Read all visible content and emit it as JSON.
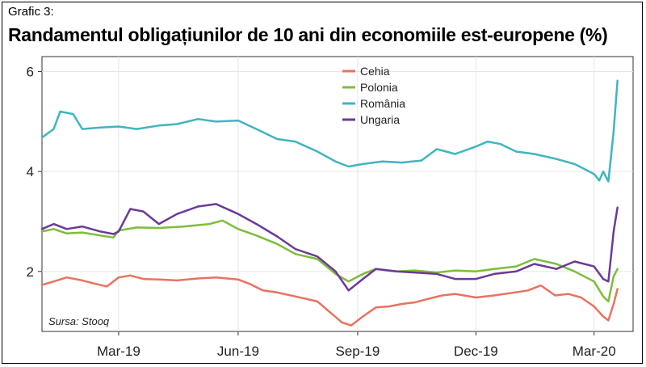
{
  "figure_label": "Grafic 3:",
  "source": "Sursa: Stooq",
  "chart_data": {
    "type": "line",
    "title": "Randamentul obligațiunilor de 10 ani din economiile est-europene (%)",
    "xlabel": "",
    "ylabel": "",
    "x_range": [
      "2019-01-01",
      "2020-03-31"
    ],
    "ylim": [
      0.8,
      6.3
    ],
    "y_ticks": [
      2,
      4,
      6
    ],
    "x_ticks": [
      {
        "date": "2019-03-01",
        "label": "Mar-19"
      },
      {
        "date": "2019-06-01",
        "label": "Jun-19"
      },
      {
        "date": "2019-09-01",
        "label": "Sep-19"
      },
      {
        "date": "2019-12-01",
        "label": "Dec-19"
      },
      {
        "date": "2020-03-01",
        "label": "Mar-20"
      }
    ],
    "grid": true,
    "legend_position": "top-center",
    "series": [
      {
        "name": "Cehia",
        "color": "#e8735f",
        "points": [
          [
            "2019-01-01",
            1.73
          ],
          [
            "2019-01-10",
            1.8
          ],
          [
            "2019-01-20",
            1.88
          ],
          [
            "2019-02-01",
            1.82
          ],
          [
            "2019-02-10",
            1.76
          ],
          [
            "2019-02-20",
            1.7
          ],
          [
            "2019-03-01",
            1.88
          ],
          [
            "2019-03-10",
            1.92
          ],
          [
            "2019-03-20",
            1.85
          ],
          [
            "2019-04-01",
            1.84
          ],
          [
            "2019-04-15",
            1.82
          ],
          [
            "2019-05-01",
            1.86
          ],
          [
            "2019-05-15",
            1.88
          ],
          [
            "2019-06-01",
            1.84
          ],
          [
            "2019-06-10",
            1.75
          ],
          [
            "2019-06-20",
            1.62
          ],
          [
            "2019-07-01",
            1.58
          ],
          [
            "2019-07-15",
            1.5
          ],
          [
            "2019-08-01",
            1.4
          ],
          [
            "2019-08-10",
            1.2
          ],
          [
            "2019-08-20",
            0.98
          ],
          [
            "2019-08-27",
            0.92
          ],
          [
            "2019-09-05",
            1.1
          ],
          [
            "2019-09-15",
            1.28
          ],
          [
            "2019-09-25",
            1.3
          ],
          [
            "2019-10-05",
            1.35
          ],
          [
            "2019-10-15",
            1.38
          ],
          [
            "2019-10-25",
            1.45
          ],
          [
            "2019-11-05",
            1.52
          ],
          [
            "2019-11-15",
            1.55
          ],
          [
            "2019-12-01",
            1.48
          ],
          [
            "2019-12-15",
            1.52
          ],
          [
            "2019-12-31",
            1.58
          ],
          [
            "2020-01-10",
            1.62
          ],
          [
            "2020-01-20",
            1.72
          ],
          [
            "2020-01-31",
            1.52
          ],
          [
            "2020-02-10",
            1.55
          ],
          [
            "2020-02-20",
            1.48
          ],
          [
            "2020-03-01",
            1.3
          ],
          [
            "2020-03-08",
            1.1
          ],
          [
            "2020-03-12",
            1.02
          ],
          [
            "2020-03-16",
            1.35
          ],
          [
            "2020-03-19",
            1.65
          ]
        ]
      },
      {
        "name": "Polonia",
        "color": "#7dbd3a",
        "points": [
          [
            "2019-01-01",
            2.8
          ],
          [
            "2019-01-10",
            2.85
          ],
          [
            "2019-01-20",
            2.76
          ],
          [
            "2019-02-01",
            2.78
          ],
          [
            "2019-02-15",
            2.72
          ],
          [
            "2019-02-25",
            2.68
          ],
          [
            "2019-03-01",
            2.82
          ],
          [
            "2019-03-15",
            2.88
          ],
          [
            "2019-04-01",
            2.87
          ],
          [
            "2019-04-20",
            2.9
          ],
          [
            "2019-05-10",
            2.95
          ],
          [
            "2019-05-20",
            3.02
          ],
          [
            "2019-06-01",
            2.85
          ],
          [
            "2019-06-15",
            2.72
          ],
          [
            "2019-07-01",
            2.55
          ],
          [
            "2019-07-15",
            2.35
          ],
          [
            "2019-08-01",
            2.25
          ],
          [
            "2019-08-15",
            1.95
          ],
          [
            "2019-08-25",
            1.8
          ],
          [
            "2019-09-05",
            1.95
          ],
          [
            "2019-09-15",
            2.05
          ],
          [
            "2019-10-01",
            2.0
          ],
          [
            "2019-10-15",
            2.02
          ],
          [
            "2019-11-01",
            1.98
          ],
          [
            "2019-11-15",
            2.02
          ],
          [
            "2019-12-01",
            2.0
          ],
          [
            "2019-12-15",
            2.05
          ],
          [
            "2020-01-01",
            2.1
          ],
          [
            "2020-01-15",
            2.25
          ],
          [
            "2020-02-01",
            2.15
          ],
          [
            "2020-02-15",
            2.0
          ],
          [
            "2020-03-01",
            1.8
          ],
          [
            "2020-03-08",
            1.5
          ],
          [
            "2020-03-12",
            1.4
          ],
          [
            "2020-03-16",
            1.9
          ],
          [
            "2020-03-19",
            2.05
          ]
        ]
      },
      {
        "name": "România",
        "color": "#3fb5c0",
        "points": [
          [
            "2019-01-01",
            4.68
          ],
          [
            "2019-01-10",
            4.85
          ],
          [
            "2019-01-15",
            5.2
          ],
          [
            "2019-01-25",
            5.15
          ],
          [
            "2019-02-01",
            4.85
          ],
          [
            "2019-02-15",
            4.88
          ],
          [
            "2019-03-01",
            4.9
          ],
          [
            "2019-03-15",
            4.85
          ],
          [
            "2019-04-01",
            4.92
          ],
          [
            "2019-04-15",
            4.95
          ],
          [
            "2019-05-01",
            5.05
          ],
          [
            "2019-05-15",
            5.0
          ],
          [
            "2019-06-01",
            5.02
          ],
          [
            "2019-06-15",
            4.85
          ],
          [
            "2019-07-01",
            4.65
          ],
          [
            "2019-07-15",
            4.6
          ],
          [
            "2019-08-01",
            4.4
          ],
          [
            "2019-08-15",
            4.2
          ],
          [
            "2019-08-25",
            4.1
          ],
          [
            "2019-09-05",
            4.15
          ],
          [
            "2019-09-20",
            4.2
          ],
          [
            "2019-10-05",
            4.18
          ],
          [
            "2019-10-20",
            4.22
          ],
          [
            "2019-11-01",
            4.45
          ],
          [
            "2019-11-15",
            4.35
          ],
          [
            "2019-12-01",
            4.5
          ],
          [
            "2019-12-10",
            4.6
          ],
          [
            "2019-12-20",
            4.55
          ],
          [
            "2020-01-01",
            4.4
          ],
          [
            "2020-01-15",
            4.35
          ],
          [
            "2020-02-01",
            4.25
          ],
          [
            "2020-02-15",
            4.15
          ],
          [
            "2020-03-01",
            3.95
          ],
          [
            "2020-03-05",
            3.82
          ],
          [
            "2020-03-08",
            4.0
          ],
          [
            "2020-03-12",
            3.8
          ],
          [
            "2020-03-16",
            4.8
          ],
          [
            "2020-03-19",
            5.82
          ]
        ]
      },
      {
        "name": "Ungaria",
        "color": "#6a3a9a",
        "points": [
          [
            "2019-01-01",
            2.85
          ],
          [
            "2019-01-10",
            2.95
          ],
          [
            "2019-01-20",
            2.85
          ],
          [
            "2019-02-01",
            2.9
          ],
          [
            "2019-02-15",
            2.8
          ],
          [
            "2019-02-25",
            2.75
          ],
          [
            "2019-03-01",
            2.8
          ],
          [
            "2019-03-10",
            3.25
          ],
          [
            "2019-03-20",
            3.2
          ],
          [
            "2019-04-01",
            2.95
          ],
          [
            "2019-04-15",
            3.15
          ],
          [
            "2019-05-01",
            3.3
          ],
          [
            "2019-05-15",
            3.35
          ],
          [
            "2019-06-01",
            3.15
          ],
          [
            "2019-06-15",
            2.95
          ],
          [
            "2019-07-01",
            2.7
          ],
          [
            "2019-07-15",
            2.45
          ],
          [
            "2019-08-01",
            2.3
          ],
          [
            "2019-08-15",
            2.0
          ],
          [
            "2019-08-25",
            1.62
          ],
          [
            "2019-09-05",
            1.85
          ],
          [
            "2019-09-15",
            2.05
          ],
          [
            "2019-10-01",
            2.0
          ],
          [
            "2019-10-15",
            1.98
          ],
          [
            "2019-11-01",
            1.95
          ],
          [
            "2019-11-15",
            1.85
          ],
          [
            "2019-12-01",
            1.85
          ],
          [
            "2019-12-15",
            1.95
          ],
          [
            "2020-01-01",
            2.0
          ],
          [
            "2020-01-15",
            2.15
          ],
          [
            "2020-02-01",
            2.05
          ],
          [
            "2020-02-15",
            2.2
          ],
          [
            "2020-03-01",
            2.1
          ],
          [
            "2020-03-08",
            1.85
          ],
          [
            "2020-03-12",
            1.8
          ],
          [
            "2020-03-16",
            2.8
          ],
          [
            "2020-03-19",
            3.28
          ]
        ]
      }
    ]
  }
}
